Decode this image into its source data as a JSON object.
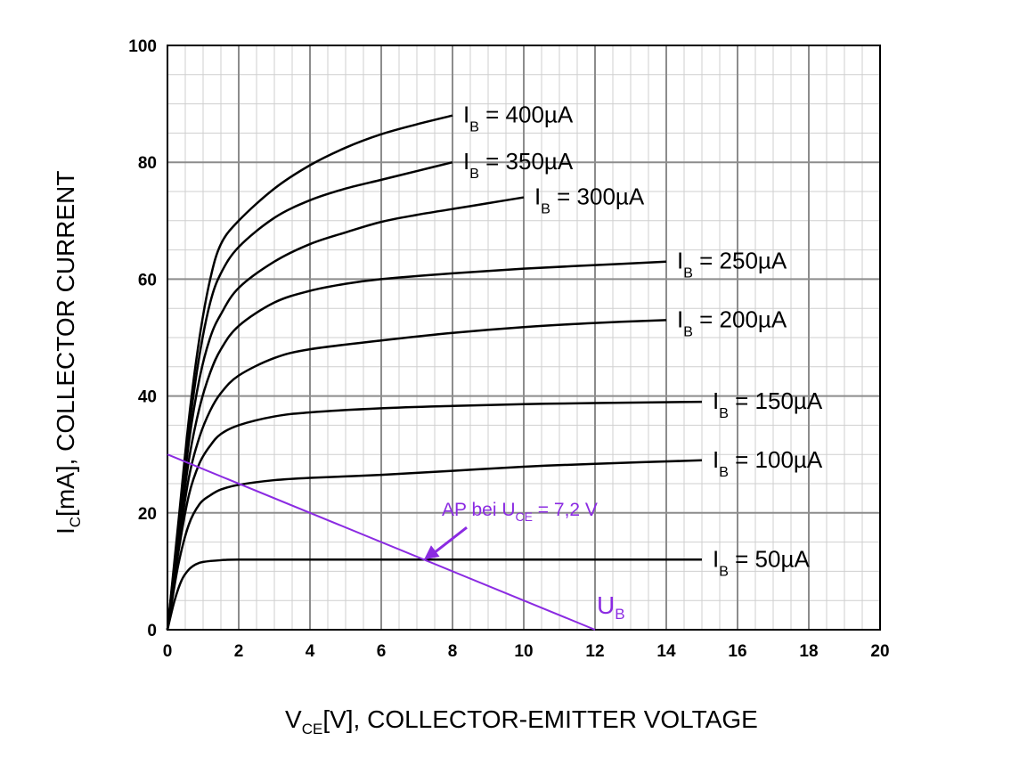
{
  "chart_data": {
    "type": "line",
    "xlim": [
      0,
      20
    ],
    "ylim": [
      0,
      100
    ],
    "x_ticks": [
      "0",
      "2",
      "4",
      "6",
      "8",
      "10",
      "12",
      "14",
      "16",
      "18",
      "20"
    ],
    "y_ticks": [
      "0",
      "20",
      "40",
      "60",
      "80",
      "100"
    ],
    "xlabel": {
      "main": "V",
      "sub": "CE",
      "rest": "[V], COLLECTOR-EMITTER VOLTAGE"
    },
    "ylabel": {
      "main": "I",
      "sub": "C",
      "rest": "[mA], COLLECTOR CURRENT"
    },
    "grid": true,
    "series": [
      {
        "name": "400µA",
        "label_main": "I",
        "label_sub": "B",
        "label_rest": " = 400µA",
        "points": [
          [
            0,
            0
          ],
          [
            0.3,
            18
          ],
          [
            0.6,
            36
          ],
          [
            0.9,
            50
          ],
          [
            1.2,
            60
          ],
          [
            1.5,
            66
          ],
          [
            2,
            70
          ],
          [
            3,
            75.5
          ],
          [
            4,
            79.5
          ],
          [
            5,
            82.5
          ],
          [
            6,
            84.8
          ],
          [
            7,
            86.5
          ],
          [
            8,
            88
          ]
        ]
      },
      {
        "name": "350µA",
        "label_main": "I",
        "label_sub": "B",
        "label_rest": " = 350µA",
        "points": [
          [
            0,
            0
          ],
          [
            0.3,
            17
          ],
          [
            0.6,
            34
          ],
          [
            0.9,
            47
          ],
          [
            1.2,
            56
          ],
          [
            1.5,
            61
          ],
          [
            2,
            65.5
          ],
          [
            3,
            70.5
          ],
          [
            4,
            73.5
          ],
          [
            5,
            75.5
          ],
          [
            6,
            77
          ],
          [
            7,
            78.5
          ],
          [
            8,
            80
          ]
        ]
      },
      {
        "name": "300µA",
        "label_main": "I",
        "label_sub": "B",
        "label_rest": " = 300µA",
        "points": [
          [
            0,
            0
          ],
          [
            0.3,
            16
          ],
          [
            0.6,
            32
          ],
          [
            0.9,
            43
          ],
          [
            1.2,
            50
          ],
          [
            1.5,
            54
          ],
          [
            2,
            58.5
          ],
          [
            3,
            63
          ],
          [
            4,
            66
          ],
          [
            5,
            68
          ],
          [
            6,
            69.8
          ],
          [
            7,
            71
          ],
          [
            8,
            72
          ],
          [
            9,
            73
          ],
          [
            10,
            74
          ]
        ]
      },
      {
        "name": "250µA",
        "label_main": "I",
        "label_sub": "B",
        "label_rest": " = 250µA",
        "points": [
          [
            0,
            0
          ],
          [
            0.3,
            15
          ],
          [
            0.6,
            29
          ],
          [
            0.9,
            38
          ],
          [
            1.2,
            44
          ],
          [
            1.5,
            48
          ],
          [
            2,
            52
          ],
          [
            3,
            56
          ],
          [
            4,
            58
          ],
          [
            5,
            59.2
          ],
          [
            6,
            60
          ],
          [
            8,
            61
          ],
          [
            10,
            61.8
          ],
          [
            12,
            62.4
          ],
          [
            14,
            63
          ]
        ]
      },
      {
        "name": "200µA",
        "label_main": "I",
        "label_sub": "B",
        "label_rest": " = 200µA",
        "points": [
          [
            0,
            0
          ],
          [
            0.3,
            14
          ],
          [
            0.6,
            26
          ],
          [
            0.9,
            33
          ],
          [
            1.2,
            37.5
          ],
          [
            1.5,
            40.5
          ],
          [
            2,
            43.5
          ],
          [
            3,
            46.5
          ],
          [
            4,
            48
          ],
          [
            6,
            49.5
          ],
          [
            8,
            50.8
          ],
          [
            10,
            51.8
          ],
          [
            12,
            52.5
          ],
          [
            14,
            53
          ]
        ]
      },
      {
        "name": "150µA",
        "label_main": "I",
        "label_sub": "B",
        "label_rest": " = 150µA",
        "points": [
          [
            0,
            0
          ],
          [
            0.3,
            13
          ],
          [
            0.6,
            23
          ],
          [
            0.9,
            28.5
          ],
          [
            1.2,
            31.5
          ],
          [
            1.5,
            33.5
          ],
          [
            2,
            35
          ],
          [
            3,
            36.5
          ],
          [
            4,
            37.2
          ],
          [
            6,
            37.9
          ],
          [
            8,
            38.3
          ],
          [
            10,
            38.6
          ],
          [
            12,
            38.8
          ],
          [
            15,
            39
          ]
        ]
      },
      {
        "name": "100µA",
        "label_main": "I",
        "label_sub": "B",
        "label_rest": " = 100µA",
        "points": [
          [
            0,
            0
          ],
          [
            0.3,
            11
          ],
          [
            0.6,
            18
          ],
          [
            0.9,
            21.5
          ],
          [
            1.2,
            23
          ],
          [
            1.5,
            24
          ],
          [
            2,
            24.8
          ],
          [
            3,
            25.6
          ],
          [
            4,
            26
          ],
          [
            6,
            26.5
          ],
          [
            8,
            27.2
          ],
          [
            10,
            27.9
          ],
          [
            12,
            28.4
          ],
          [
            15,
            29
          ]
        ]
      },
      {
        "name": "50µA",
        "label_main": "I",
        "label_sub": "B",
        "label_rest": " = 50µA",
        "points": [
          [
            0,
            0
          ],
          [
            0.2,
            5
          ],
          [
            0.4,
            8.5
          ],
          [
            0.6,
            10.3
          ],
          [
            0.8,
            11.2
          ],
          [
            1,
            11.6
          ],
          [
            1.5,
            11.9
          ],
          [
            2,
            12
          ],
          [
            4,
            12
          ],
          [
            8,
            12
          ],
          [
            12,
            12
          ],
          [
            15,
            12
          ]
        ]
      }
    ],
    "load_line": {
      "label_main": "U",
      "label_sub": "B",
      "points": [
        [
          0,
          30
        ],
        [
          12,
          0
        ]
      ]
    },
    "annotation": {
      "text_main": "AP bei U",
      "text_sub": "CE",
      "text_rest": " = 7,2 V",
      "point": [
        7.2,
        12
      ],
      "from": [
        8.4,
        17.5
      ]
    },
    "colors": {
      "curves": "#000000",
      "grid_major": "#8c8c8c",
      "grid_minor": "#cfcfcf",
      "annotation": "#8B2BE2"
    }
  }
}
